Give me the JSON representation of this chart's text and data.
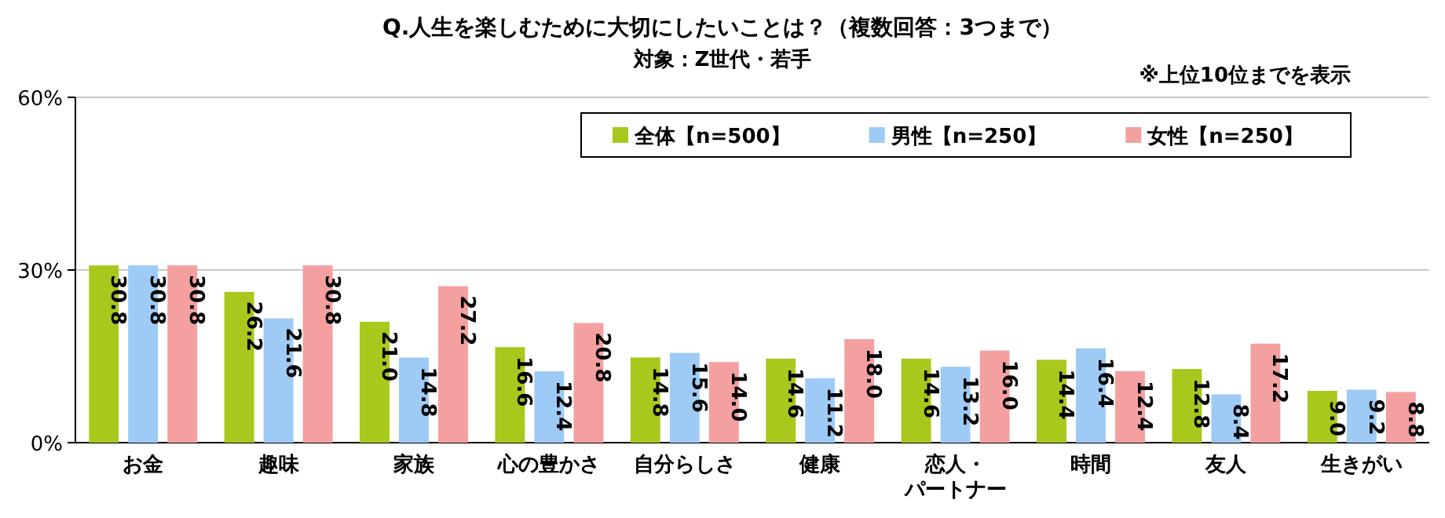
{
  "chart_data": {
    "type": "bar",
    "title": "Q.人生を楽しむために大切にしたいことは？（複数回答：3つまで）",
    "subtitle": "対象：Z世代・若手",
    "annotations": [
      "※上位10位までを表示"
    ],
    "categories": [
      "お金",
      "趣味",
      "家族",
      "心の豊かさ",
      "自分らしさ",
      "健康",
      "恋人・パートナー",
      "時間",
      "友人",
      "生きがい"
    ],
    "series": [
      {
        "name": "全体【n=500】",
        "color": "#a8c81e",
        "values": [
          30.8,
          26.2,
          21.0,
          16.6,
          14.8,
          14.6,
          14.6,
          14.4,
          12.8,
          9.0
        ],
        "value_labels": [
          "30.8",
          "26.2",
          "21.0",
          "16.6",
          "14.8",
          "14.6",
          "14.6",
          "14.4",
          "12.8",
          "9.0"
        ]
      },
      {
        "name": "男性【n=250】",
        "color": "#9dcbf5",
        "values": [
          30.8,
          21.6,
          14.8,
          12.4,
          15.6,
          11.2,
          13.2,
          16.4,
          8.4,
          9.2
        ],
        "value_labels": [
          "30.8",
          "21.6",
          "14.8",
          "12.4",
          "15.6",
          "11.2",
          "13.2",
          "16.4",
          "8.4",
          "9.2"
        ]
      },
      {
        "name": "女性【n=250】",
        "color": "#f4a0a0",
        "values": [
          30.8,
          30.8,
          27.2,
          20.8,
          14.0,
          18.0,
          16.0,
          12.4,
          17.2,
          8.8
        ],
        "value_labels": [
          "30.8",
          "30.8",
          "27.2",
          "20.8",
          "14.0",
          "18.0",
          "16.0",
          "12.4",
          "17.2",
          "8.8"
        ]
      }
    ],
    "ylim": [
      0,
      60
    ],
    "yticks": [
      {
        "value": 0,
        "label": "0%"
      },
      {
        "value": 30,
        "label": "30%"
      },
      {
        "value": 60,
        "label": "60%"
      }
    ],
    "grid": "y",
    "legend": "top right"
  }
}
